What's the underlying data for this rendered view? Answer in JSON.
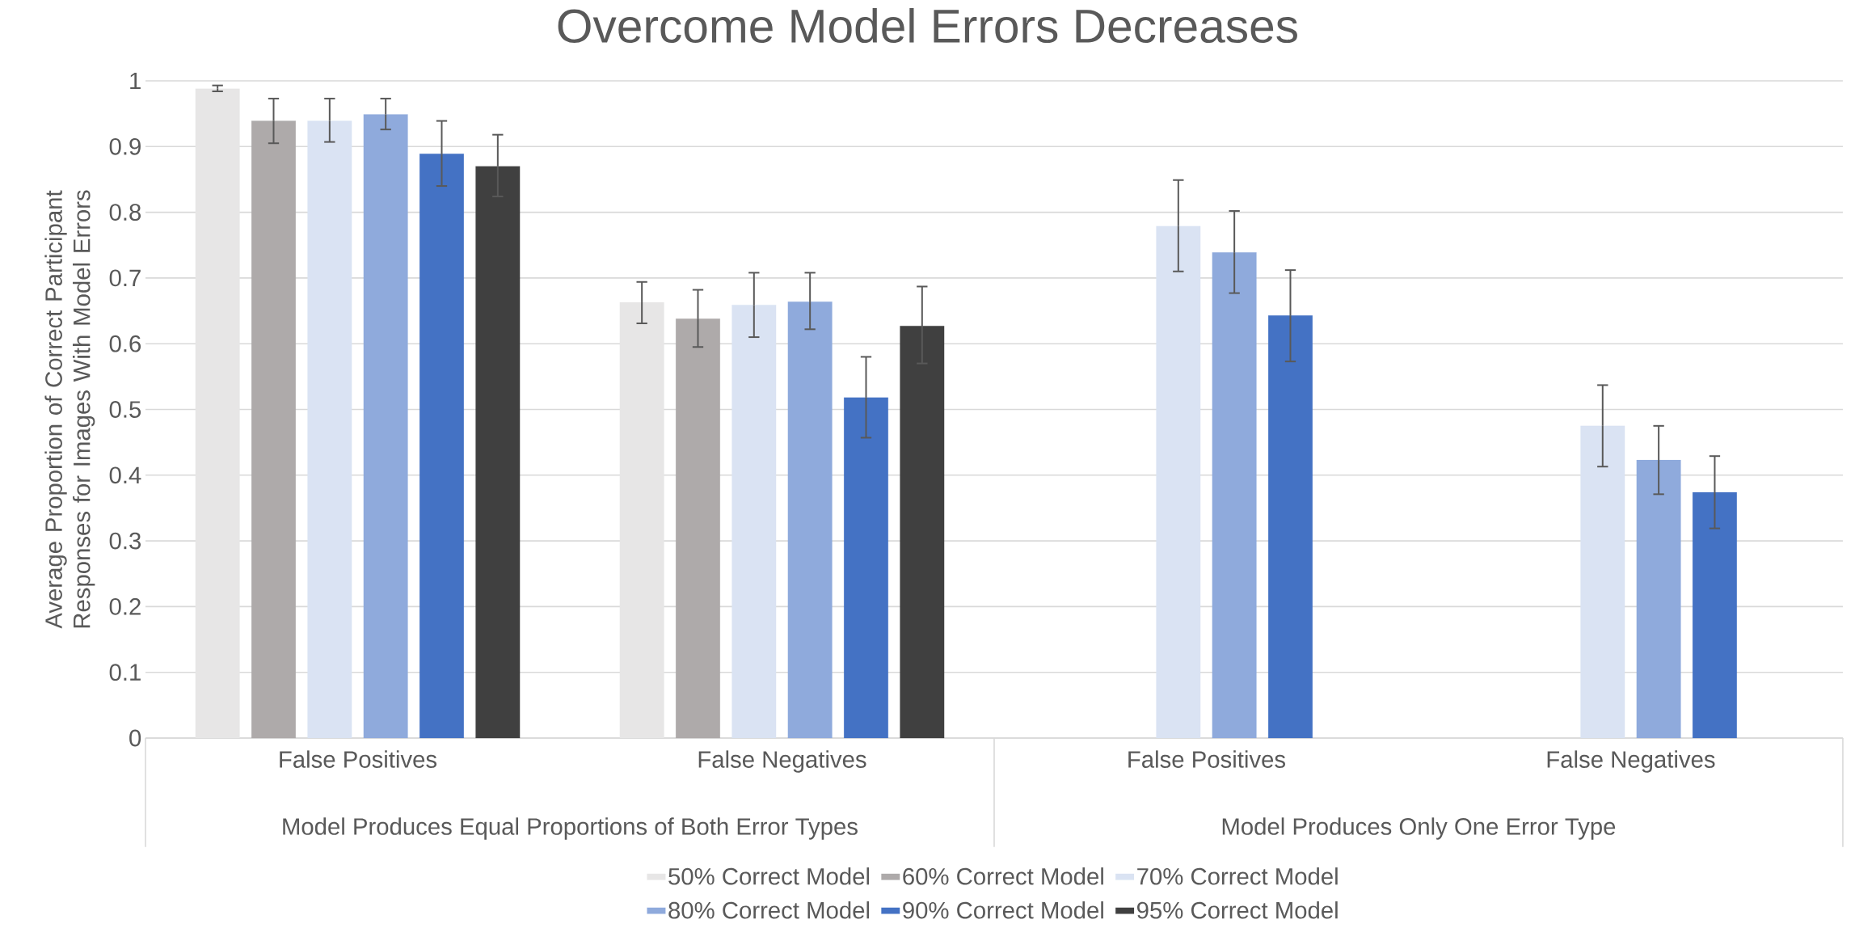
{
  "chart_data": {
    "type": "bar",
    "title": "Overcome Model Errors Decreases",
    "ylabel": "Average Proportion of Correct Participant Responses for Images With Model Errors",
    "categories": [
      "False Positives",
      "False Negatives",
      "False Positives",
      "False Negatives"
    ],
    "annotations": [
      "Model Produces Equal Proportions of Both Error Types",
      "Model Produces Only One Error Type"
    ],
    "series": [
      {
        "name": "50% Correct Model",
        "color": "#e7e6e6",
        "values": [
          0.988,
          0.663,
          null,
          null
        ],
        "errors": [
          [
            0.984,
            0.993
          ],
          [
            0.631,
            0.694
          ],
          null,
          null
        ]
      },
      {
        "name": "60% Correct Model",
        "color": "#aeaaaa",
        "values": [
          0.939,
          0.638,
          null,
          null
        ],
        "errors": [
          [
            0.905,
            0.973
          ],
          [
            0.595,
            0.682
          ],
          null,
          null
        ]
      },
      {
        "name": "70% Correct Model",
        "color": "#dae3f3",
        "values": [
          0.939,
          0.659,
          0.779,
          0.475
        ],
        "errors": [
          [
            0.907,
            0.973
          ],
          [
            0.61,
            0.708
          ],
          [
            0.71,
            0.849
          ],
          [
            0.413,
            0.537
          ]
        ]
      },
      {
        "name": "80% Correct Model",
        "color": "#8faadc",
        "values": [
          0.949,
          0.664,
          0.739,
          0.423
        ],
        "errors": [
          [
            0.926,
            0.973
          ],
          [
            0.622,
            0.708
          ],
          [
            0.677,
            0.802
          ],
          [
            0.371,
            0.475
          ]
        ]
      },
      {
        "name": "90% Correct Model",
        "color": "#4472c4",
        "values": [
          0.889,
          0.518,
          0.643,
          0.374
        ],
        "errors": [
          [
            0.84,
            0.939
          ],
          [
            0.457,
            0.58
          ],
          [
            0.573,
            0.712
          ],
          [
            0.319,
            0.429
          ]
        ]
      },
      {
        "name": "95% Correct Model",
        "color": "#404040",
        "values": [
          0.87,
          0.627,
          null,
          null
        ],
        "errors": [
          [
            0.824,
            0.918
          ],
          [
            0.57,
            0.687
          ],
          null,
          null
        ]
      }
    ],
    "ylim": [
      0,
      1
    ],
    "yticks": [
      0,
      0.1,
      0.2,
      0.3,
      0.4,
      0.5,
      0.6,
      0.7,
      0.8,
      0.9,
      1
    ],
    "grid": "y",
    "legend": "bottom"
  }
}
